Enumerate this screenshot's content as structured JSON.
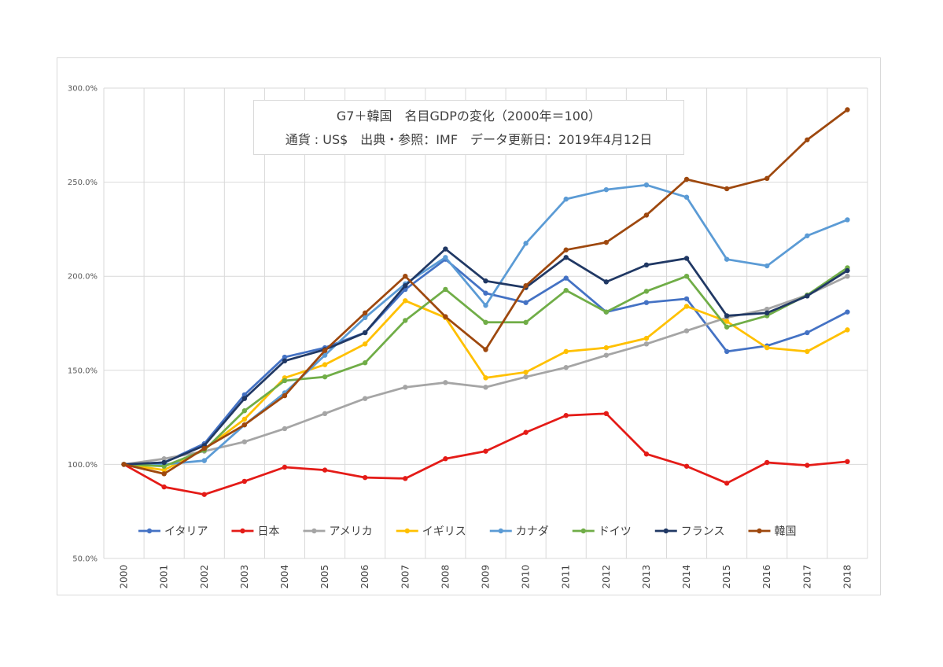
{
  "chart_data": {
    "type": "line",
    "title": "G7＋韓国　名目GDPの変化（2000年＝100）",
    "subtitle": "通貨 : US$　出典・参照：IMF　データ更新日：2019年4月12日",
    "xlabel": "",
    "ylabel": "",
    "ylim": [
      50,
      300
    ],
    "yticks": [
      "50.0%",
      "100.0%",
      "150.0%",
      "200.0%",
      "250.0%",
      "300.0%"
    ],
    "ytick_values": [
      50,
      100,
      150,
      200,
      250,
      300
    ],
    "categories": [
      "2000",
      "2001",
      "2002",
      "2003",
      "2004",
      "2005",
      "2006",
      "2007",
      "2008",
      "2009",
      "2010",
      "2011",
      "2012",
      "2013",
      "2014",
      "2015",
      "2016",
      "2017",
      "2018"
    ],
    "grid": "vertical and horizontal",
    "legend_position": "bottom-inside",
    "series": [
      {
        "name": "イタリア",
        "color": "#4472c4",
        "values": [
          100,
          101,
          111,
          137,
          157,
          162,
          170,
          193,
          209,
          191,
          186,
          199,
          181,
          186,
          188,
          160,
          163,
          170,
          181
        ]
      },
      {
        "name": "日本",
        "color": "#e41b17",
        "values": [
          100,
          88,
          84,
          91,
          98.5,
          97,
          93,
          92.5,
          103,
          107,
          117,
          126,
          127,
          105.5,
          99,
          90,
          101,
          99.5,
          101.5
        ]
      },
      {
        "name": "アメリカ",
        "color": "#a5a5a5",
        "values": [
          100,
          103,
          107,
          112,
          119,
          127,
          135,
          141,
          143.5,
          141,
          146.5,
          151.5,
          158,
          164,
          171,
          178,
          182.5,
          190,
          200
        ]
      },
      {
        "name": "イギリス",
        "color": "#ffc000",
        "values": [
          100,
          97,
          108,
          124,
          146,
          153,
          164,
          187,
          178,
          146,
          149,
          160,
          162,
          167,
          184,
          176,
          162,
          160,
          171.5
        ]
      },
      {
        "name": "カナダ",
        "color": "#5b9bd5",
        "values": [
          100,
          100,
          102,
          121,
          138,
          158,
          178,
          196,
          210,
          184.5,
          217.5,
          241,
          246,
          248.5,
          242,
          209,
          205.5,
          221.5,
          230
        ]
      },
      {
        "name": "ドイツ",
        "color": "#70ad47",
        "values": [
          100,
          99,
          107.5,
          128.5,
          144.5,
          146.5,
          154,
          176.5,
          193,
          175.5,
          175.5,
          192.5,
          181,
          192,
          200,
          173,
          179,
          190,
          204.5
        ]
      },
      {
        "name": "フランス",
        "color": "#203864",
        "values": [
          100,
          101,
          110,
          135,
          155,
          161,
          170,
          195,
          214.5,
          197.5,
          194,
          210,
          197,
          206,
          209.5,
          179,
          180.5,
          189.5,
          203
        ]
      },
      {
        "name": "韓国",
        "color": "#9e480e",
        "values": [
          100,
          95,
          108.5,
          121,
          136.5,
          160.5,
          180.5,
          200,
          178.5,
          161,
          195,
          214,
          218,
          232.5,
          251.5,
          246.5,
          252,
          272.5,
          288.5
        ]
      }
    ]
  }
}
